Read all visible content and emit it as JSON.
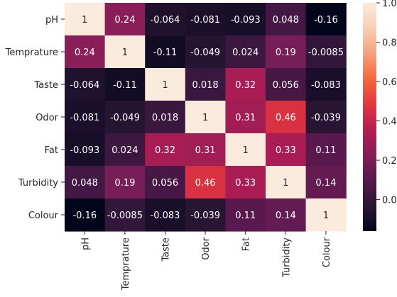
{
  "chart_data": {
    "type": "heatmap",
    "title": "",
    "xlabel": "",
    "ylabel": "",
    "rows": [
      "pH",
      "Temprature",
      "Taste",
      "Odor",
      "Fat ",
      "Turbidity",
      "Colour"
    ],
    "columns": [
      "pH",
      "Temprature",
      "Taste",
      "Odor",
      "Fat",
      "Turbidity",
      "Colour"
    ],
    "values": [
      [
        1,
        0.24,
        -0.064,
        -0.081,
        -0.093,
        0.048,
        -0.16
      ],
      [
        0.24,
        1,
        -0.11,
        -0.049,
        0.024,
        0.19,
        -0.0085
      ],
      [
        -0.064,
        -0.11,
        1,
        0.018,
        0.32,
        0.056,
        -0.083
      ],
      [
        -0.081,
        -0.049,
        0.018,
        1,
        0.31,
        0.46,
        -0.039
      ],
      [
        -0.093,
        0.024,
        0.32,
        0.31,
        1,
        0.33,
        0.11
      ],
      [
        0.048,
        0.19,
        0.056,
        0.46,
        0.33,
        1,
        0.14
      ],
      [
        -0.16,
        -0.0085,
        -0.083,
        -0.039,
        0.11,
        0.14,
        1
      ]
    ],
    "labels": [
      [
        "1",
        "0.24",
        "-0.064",
        "-0.081",
        "-0.093",
        "0.048",
        "-0.16"
      ],
      [
        "0.24",
        "1",
        "-0.11",
        "-0.049",
        "0.024",
        "0.19",
        "-0.0085"
      ],
      [
        "-0.064",
        "-0.11",
        "1",
        "0.018",
        "0.32",
        "0.056",
        "-0.083"
      ],
      [
        "-0.081",
        "-0.049",
        "0.018",
        "1",
        "0.31",
        "0.46",
        "-0.039"
      ],
      [
        "-0.093",
        "0.024",
        "0.32",
        "0.31",
        "1",
        "0.33",
        "0.11"
      ],
      [
        "0.048",
        "0.19",
        "0.056",
        "0.46",
        "0.33",
        "1",
        "0.14"
      ],
      [
        "-0.16",
        "-0.0085",
        "-0.083",
        "-0.039",
        "0.11",
        "0.14",
        "1"
      ]
    ],
    "colorbar": {
      "vmin": -0.16,
      "vmax": 1,
      "ticks": [
        0.0,
        0.2,
        0.4,
        0.6,
        0.8,
        1.0
      ],
      "tick_labels": [
        "0.0",
        "0.2",
        "0.4",
        "0.6",
        "0.8",
        "1.0"
      ]
    },
    "colormap": "rocket",
    "colormap_stops": [
      "#03051a",
      "#2a1636",
      "#55194e",
      "#841e5a",
      "#b41d52",
      "#e1373e",
      "#f3693b",
      "#f6a07f",
      "#f8cfb5",
      "#faebdd"
    ]
  }
}
